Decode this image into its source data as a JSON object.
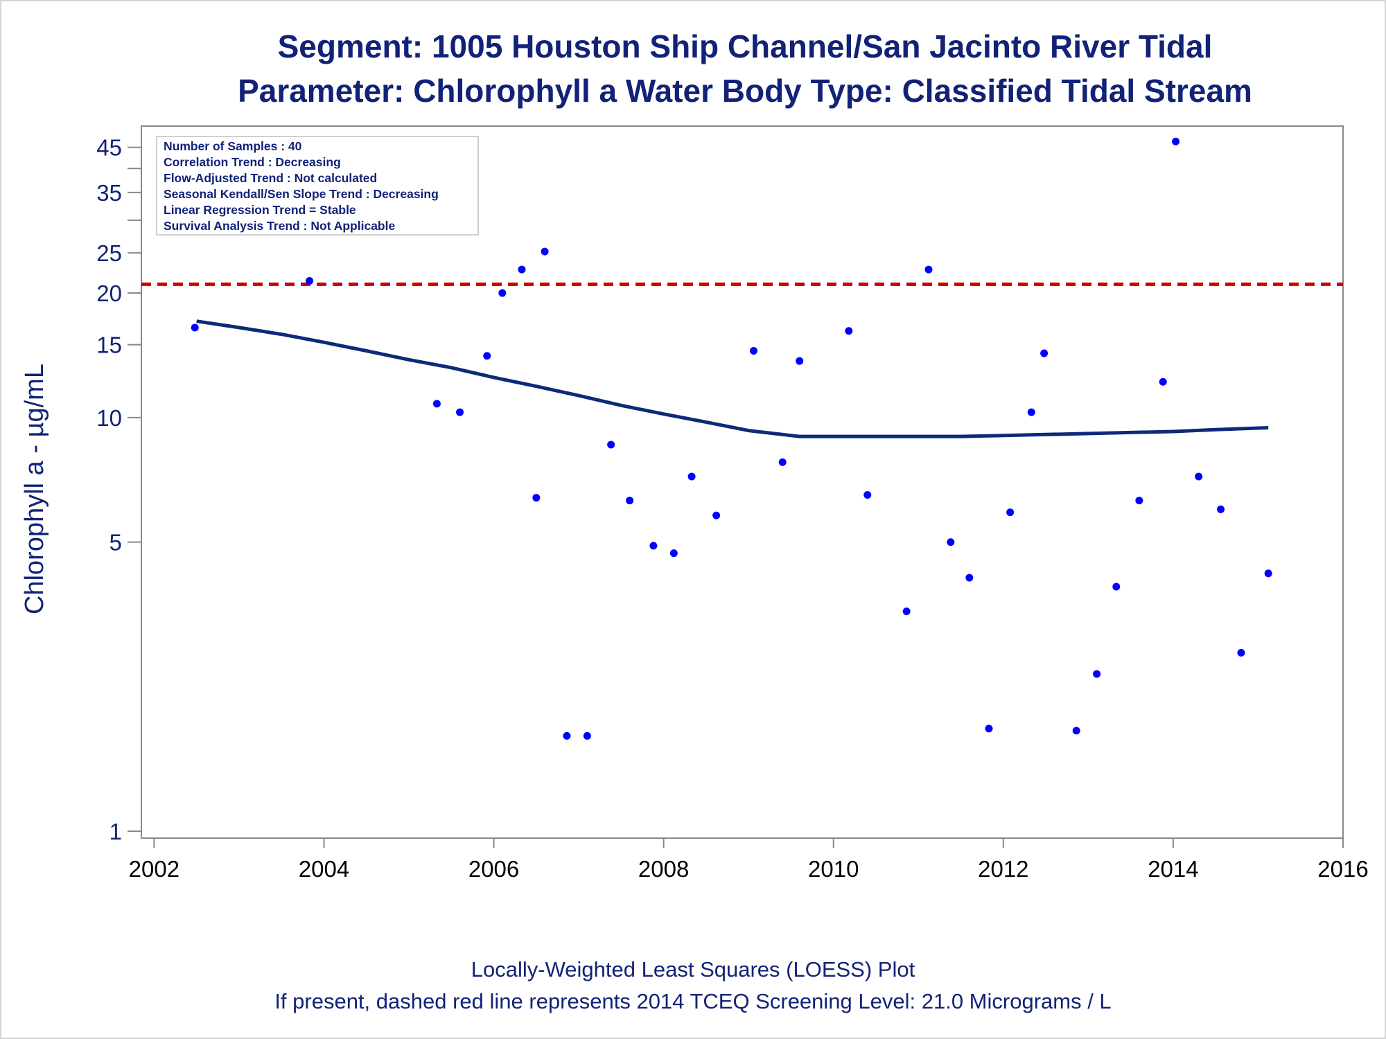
{
  "title_line1": "Segment: 1005  Houston Ship Channel/San Jacinto River Tidal",
  "title_line2": "Parameter: Chlorophyll a   Water Body Type: Classified Tidal Stream",
  "footnote_line1": "Locally-Weighted Least Squares (LOESS) Plot",
  "footnote_line2": "If present, dashed red line represents 2014 TCEQ Screening Level: 21.0 Micrograms / L",
  "stats_box": [
    "Number of Samples : 40",
    "Correlation Trend : Decreasing",
    "Flow-Adjusted Trend : Not calculated",
    "Seasonal Kendall/Sen Slope Trend : Decreasing",
    "Linear Regression Trend = Stable",
    "Survival Analysis Trend : Not Applicable"
  ],
  "colors": {
    "points": "#0000ff",
    "loess": "#0d2a7a",
    "screening_line": "#cc0000",
    "text": "#112277",
    "axis": "#888888"
  },
  "chart_data": {
    "type": "scatter",
    "ylabel": "Chlorophyll a -  µg/mL",
    "xlabel": "",
    "y_scale": "log",
    "xlim": [
      2001.85,
      2016.0
    ],
    "ylim": [
      1,
      48
    ],
    "x_ticks": [
      2002,
      2004,
      2006,
      2008,
      2010,
      2012,
      2014,
      2016
    ],
    "y_ticks": [
      1,
      5,
      10,
      15,
      20,
      25,
      35,
      45
    ],
    "y_minor_ticks": [
      30,
      40
    ],
    "screening_level": 21.0,
    "series": [
      {
        "name": "",
        "kind": "points",
        "points": [
          [
            2002.48,
            16.5
          ],
          [
            2003.83,
            21.4
          ],
          [
            2005.33,
            10.8
          ],
          [
            2005.6,
            10.3
          ],
          [
            2005.92,
            14.1
          ],
          [
            2006.1,
            20.0
          ],
          [
            2006.33,
            22.8
          ],
          [
            2006.5,
            6.4
          ],
          [
            2006.6,
            25.2
          ],
          [
            2006.86,
            1.7
          ],
          [
            2007.1,
            1.7
          ],
          [
            2007.38,
            8.6
          ],
          [
            2007.6,
            6.3
          ],
          [
            2007.88,
            4.9
          ],
          [
            2008.12,
            4.7
          ],
          [
            2008.33,
            7.2
          ],
          [
            2008.62,
            5.8
          ],
          [
            2009.06,
            14.5
          ],
          [
            2009.4,
            7.8
          ],
          [
            2009.6,
            13.7
          ],
          [
            2010.18,
            16.2
          ],
          [
            2010.4,
            6.5
          ],
          [
            2010.86,
            3.4
          ],
          [
            2011.12,
            22.8
          ],
          [
            2011.38,
            5.0
          ],
          [
            2011.6,
            4.1
          ],
          [
            2011.83,
            1.77
          ],
          [
            2012.08,
            5.9
          ],
          [
            2012.33,
            10.3
          ],
          [
            2012.48,
            14.3
          ],
          [
            2012.86,
            1.75
          ],
          [
            2013.1,
            2.4
          ],
          [
            2013.33,
            3.9
          ],
          [
            2013.6,
            6.3
          ],
          [
            2013.88,
            12.2
          ],
          [
            2014.03,
            46.5
          ],
          [
            2014.3,
            7.2
          ],
          [
            2014.56,
            6.0
          ],
          [
            2014.8,
            2.7
          ],
          [
            2015.12,
            4.2
          ]
        ]
      },
      {
        "name": "",
        "kind": "loess",
        "points": [
          [
            2002.5,
            17.1
          ],
          [
            2003.0,
            16.5
          ],
          [
            2003.5,
            15.9
          ],
          [
            2004.0,
            15.2
          ],
          [
            2004.5,
            14.5
          ],
          [
            2005.0,
            13.8
          ],
          [
            2005.5,
            13.2
          ],
          [
            2006.0,
            12.5
          ],
          [
            2006.5,
            11.9
          ],
          [
            2007.0,
            11.3
          ],
          [
            2007.5,
            10.7
          ],
          [
            2008.0,
            10.2
          ],
          [
            2008.5,
            9.75
          ],
          [
            2009.0,
            9.3
          ],
          [
            2009.6,
            9.0
          ],
          [
            2010.0,
            9.0
          ],
          [
            2010.5,
            9.0
          ],
          [
            2011.0,
            9.0
          ],
          [
            2011.5,
            9.0
          ],
          [
            2012.0,
            9.05
          ],
          [
            2012.5,
            9.1
          ],
          [
            2013.0,
            9.15
          ],
          [
            2013.5,
            9.2
          ],
          [
            2014.0,
            9.25
          ],
          [
            2014.5,
            9.35
          ],
          [
            2015.12,
            9.45
          ]
        ]
      }
    ]
  }
}
